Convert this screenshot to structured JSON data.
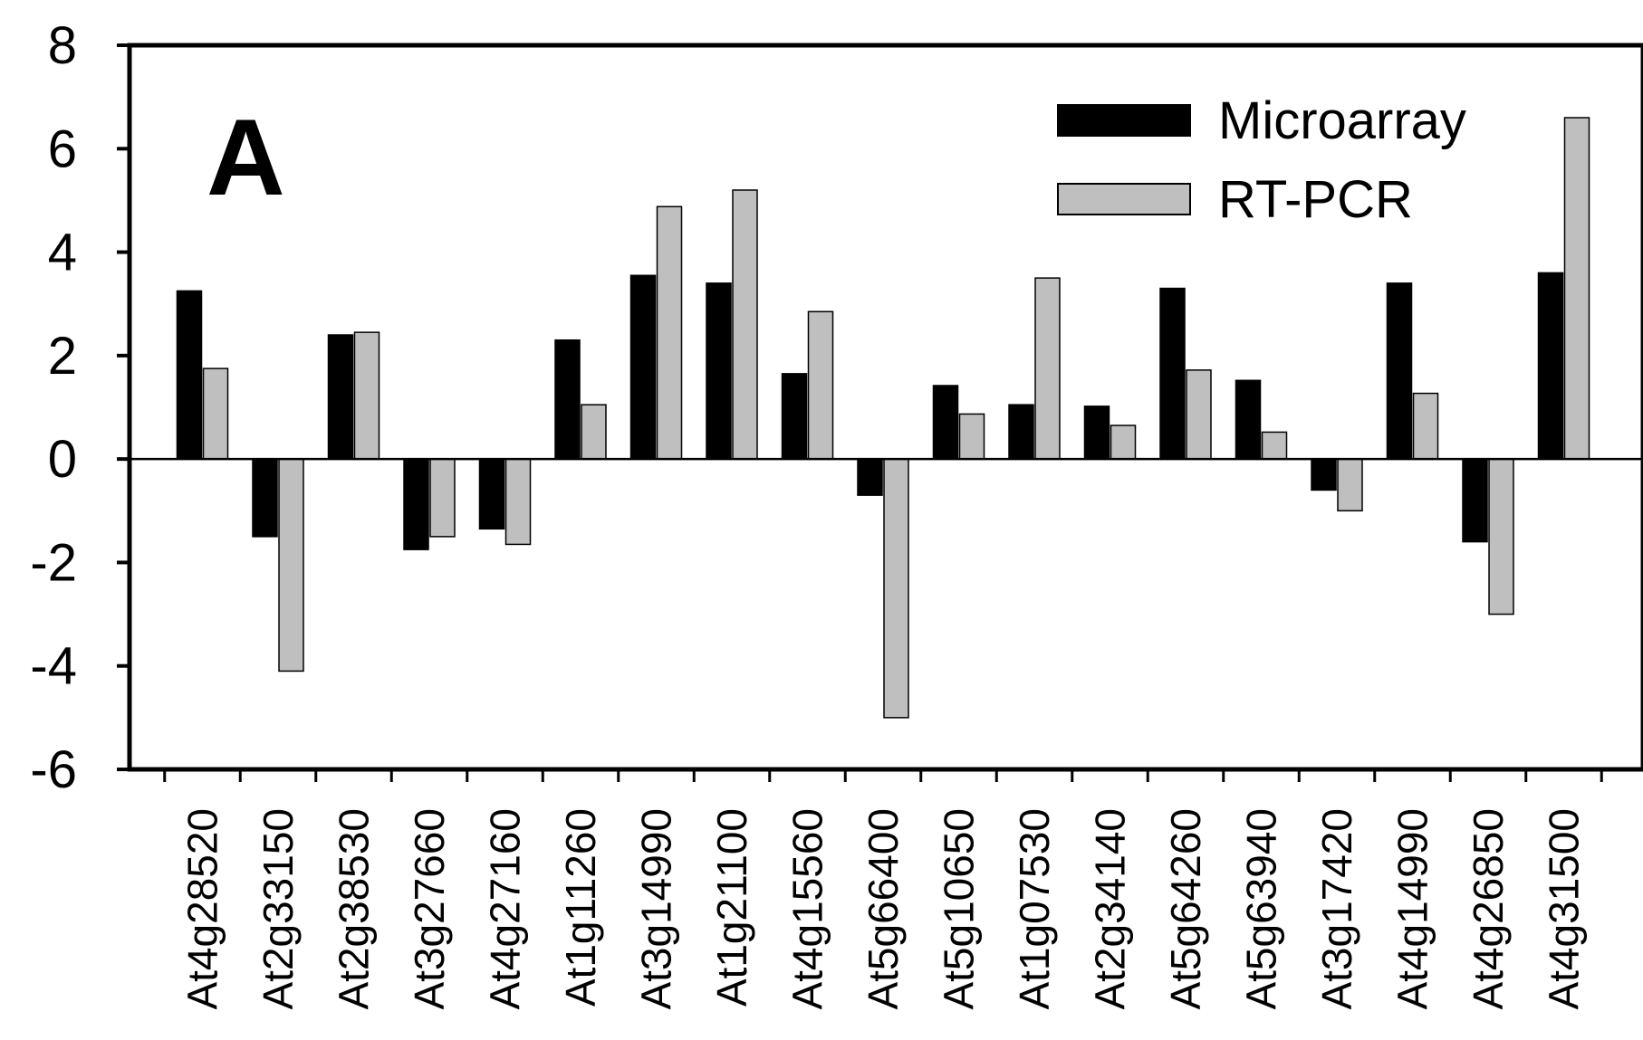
{
  "panel_label": "A",
  "colors": {
    "microarray": "#000000",
    "rtpcr": "#bfbfbf",
    "axis": "#000000"
  },
  "chart_data": {
    "type": "bar",
    "title": "",
    "xlabel": "",
    "ylabel": "",
    "ylim": [
      -6,
      8
    ],
    "yticks": [
      -6,
      -4,
      -2,
      0,
      2,
      4,
      6,
      8
    ],
    "legend_position": "top-right",
    "grid": false,
    "categories": [
      "At4g28520",
      "At2g33150",
      "At2g38530",
      "At3g27660",
      "At4g27160",
      "At1g11260",
      "At3g14990",
      "At1g21100",
      "At4g15560",
      "At5g66400",
      "At5g10650",
      "At1g07530",
      "At2g34140",
      "At5g64260",
      "At5g63940",
      "At3g17420",
      "At4g14990",
      "At4g26850",
      "At4g31500"
    ],
    "series": [
      {
        "name": "Microarray",
        "values": [
          3.25,
          -1.5,
          2.4,
          -1.75,
          -1.35,
          2.3,
          3.55,
          3.4,
          1.65,
          -0.7,
          1.42,
          1.05,
          1.02,
          3.3,
          1.52,
          -0.6,
          3.4,
          -1.6,
          3.6
        ]
      },
      {
        "name": "RT-PCR",
        "values": [
          1.75,
          -4.1,
          2.45,
          -1.5,
          -1.65,
          1.05,
          4.88,
          5.2,
          2.85,
          -5.0,
          0.87,
          3.5,
          0.65,
          1.72,
          0.52,
          -1.0,
          1.27,
          -3.0,
          6.6
        ]
      }
    ]
  }
}
